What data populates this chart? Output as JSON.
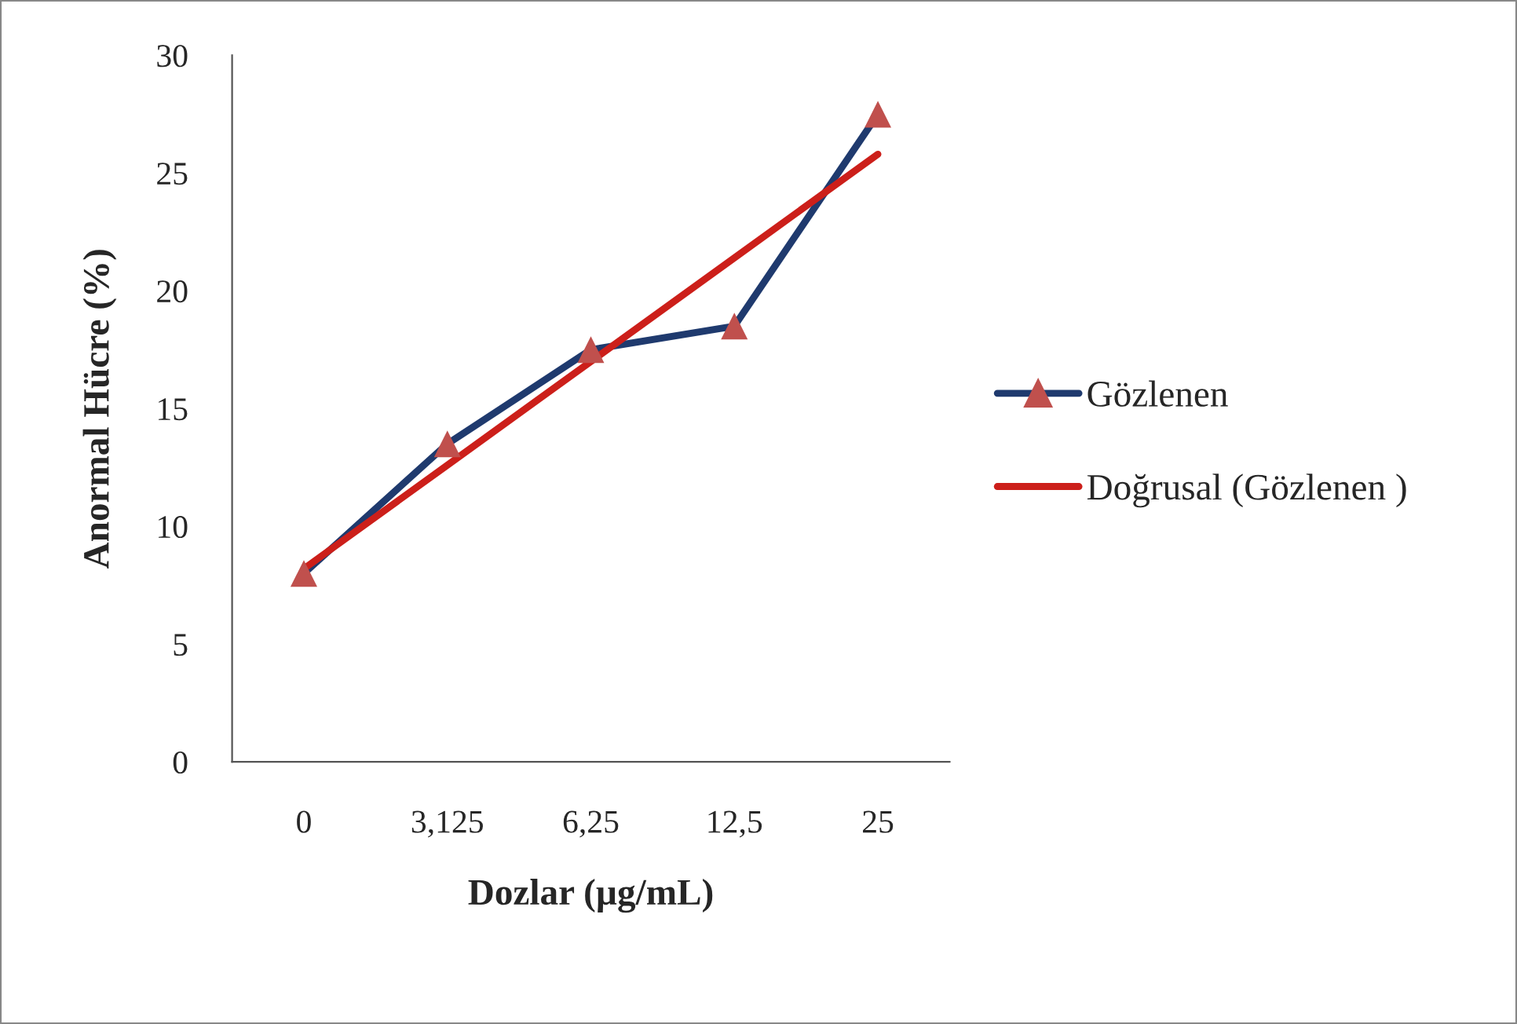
{
  "chart_data": {
    "type": "line",
    "xlabel": "Dozlar (µg/mL)",
    "ylabel": "Anormal Hücre (%)",
    "categories": [
      "0",
      "3,125",
      "6,25",
      "12,5",
      "25"
    ],
    "series": [
      {
        "name": "Gözlenen",
        "color": "#1f3a6e",
        "marker": "triangle",
        "colors": [
          "#c0504d",
          "#c0504d",
          "#c0504d",
          "#c0504d",
          "#c0504d"
        ],
        "values": [
          8,
          13.5,
          17.5,
          18.5,
          27.5
        ]
      },
      {
        "name": "Doğrusal (Gözlenen )",
        "color": "#cc1f1a",
        "marker": "none",
        "values": [
          8.2,
          12.6,
          17.0,
          21.4,
          25.8
        ]
      }
    ],
    "ylim": [
      0,
      30
    ],
    "yticks": [
      0,
      5,
      10,
      15,
      20,
      25,
      30
    ],
    "grid": false,
    "legend": "right"
  }
}
